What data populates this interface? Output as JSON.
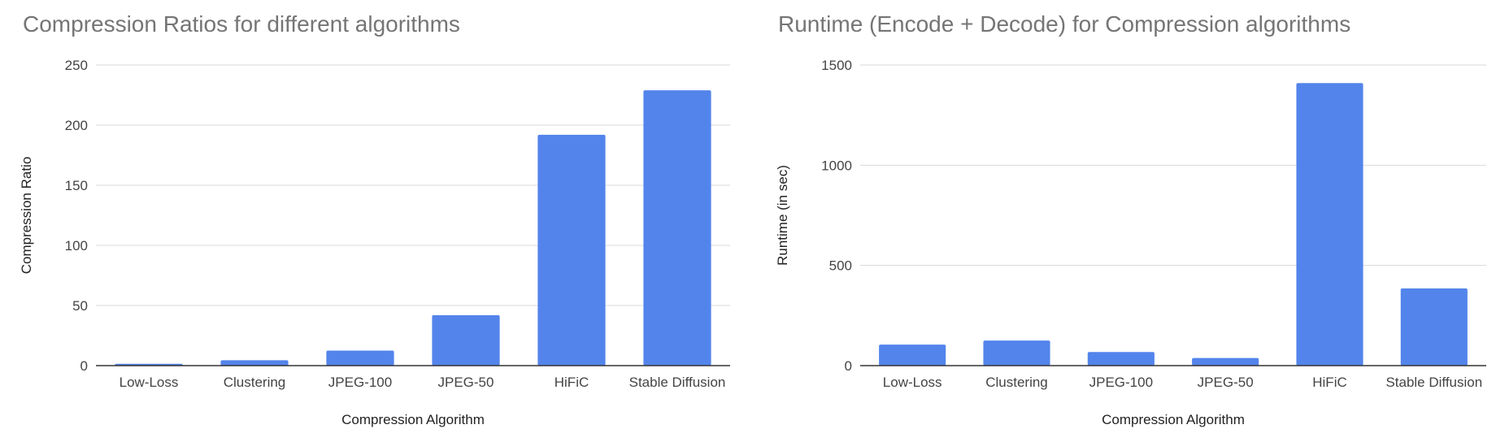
{
  "colors": {
    "bar": "#5384eb",
    "grid": "#d9d9d9",
    "axis": "#333333"
  },
  "chart_data": [
    {
      "type": "bar",
      "title": "Compression Ratios for different algorithms",
      "xlabel": "Compression Algorithm",
      "ylabel": "Compression Ratio",
      "categories": [
        "Low-Loss",
        "Clustering",
        "JPEG-100",
        "JPEG-50",
        "HiFiC",
        "Stable Diffusion"
      ],
      "values": [
        1.5,
        4.5,
        12.5,
        42,
        192,
        229
      ],
      "ylim": [
        0,
        250
      ],
      "yticks": [
        "0",
        "50",
        "100",
        "150",
        "200",
        "250"
      ],
      "grid": true,
      "legend": "none"
    },
    {
      "type": "bar",
      "title": "Runtime (Encode + Decode) for Compression algorithms",
      "xlabel": "Compression Algorithm",
      "ylabel": "Runtime (in sec)",
      "categories": [
        "Low-Loss",
        "Clustering",
        "JPEG-100",
        "JPEG-50",
        "HiFiC",
        "Stable Diffusion"
      ],
      "values": [
        105,
        125,
        68,
        38,
        1410,
        385
      ],
      "ylim": [
        0,
        1500
      ],
      "yticks": [
        "0",
        "500",
        "1000",
        "1500"
      ],
      "grid": true,
      "legend": "none"
    }
  ]
}
